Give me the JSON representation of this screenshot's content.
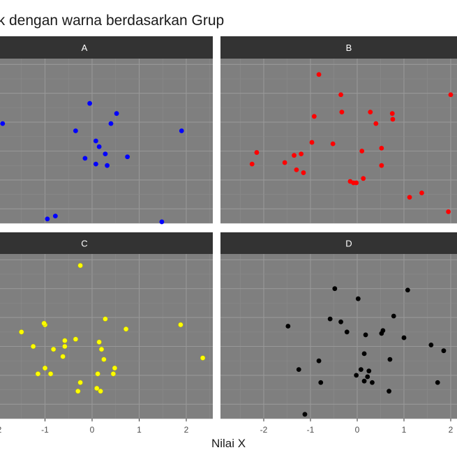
{
  "chart_data": {
    "type": "scatter",
    "title": "ik dengan warna berdasarkan Grup",
    "xlabel": "Nilai X",
    "ylabel": "",
    "x_tick_labels": [
      "-2",
      "-1",
      "0",
      "1",
      "2"
    ],
    "xlim": [
      -2.0,
      2.0
    ],
    "ylim": [
      -2.5,
      3.2
    ],
    "grid": true,
    "facets": [
      {
        "name": "A",
        "color": "#0000ff",
        "points": [
          {
            "x": -1.9,
            "y": 0.95
          },
          {
            "x": -0.05,
            "y": 1.65
          },
          {
            "x": 0.52,
            "y": 1.3
          },
          {
            "x": 0.4,
            "y": 0.95
          },
          {
            "x": -0.35,
            "y": 0.7
          },
          {
            "x": 1.9,
            "y": 0.7
          },
          {
            "x": 0.08,
            "y": 0.35
          },
          {
            "x": 0.15,
            "y": 0.15
          },
          {
            "x": 0.28,
            "y": -0.1
          },
          {
            "x": -0.15,
            "y": -0.25
          },
          {
            "x": 0.75,
            "y": -0.2
          },
          {
            "x": 0.08,
            "y": -0.45
          },
          {
            "x": 0.32,
            "y": -0.5
          },
          {
            "x": -0.78,
            "y": -2.25
          },
          {
            "x": -0.95,
            "y": -2.35
          },
          {
            "x": 1.48,
            "y": -2.45
          }
        ]
      },
      {
        "name": "B",
        "color": "#ff0000",
        "points": [
          {
            "x": -0.82,
            "y": 2.65
          },
          {
            "x": -0.35,
            "y": 1.95
          },
          {
            "x": 2.0,
            "y": 1.95
          },
          {
            "x": -0.33,
            "y": 1.35
          },
          {
            "x": 0.28,
            "y": 1.35
          },
          {
            "x": 0.75,
            "y": 1.3
          },
          {
            "x": -0.92,
            "y": 1.2
          },
          {
            "x": 0.76,
            "y": 1.1
          },
          {
            "x": 0.4,
            "y": 0.95
          },
          {
            "x": -0.97,
            "y": 0.3
          },
          {
            "x": -0.52,
            "y": 0.25
          },
          {
            "x": 0.52,
            "y": 0.1
          },
          {
            "x": 0.1,
            "y": 0.0
          },
          {
            "x": -2.15,
            "y": -0.05
          },
          {
            "x": -1.35,
            "y": -0.15
          },
          {
            "x": -1.2,
            "y": -0.1
          },
          {
            "x": -1.55,
            "y": -0.4
          },
          {
            "x": -2.25,
            "y": -0.45
          },
          {
            "x": 0.52,
            "y": -0.5
          },
          {
            "x": -1.3,
            "y": -0.65
          },
          {
            "x": -1.15,
            "y": -0.75
          },
          {
            "x": 0.13,
            "y": -0.95
          },
          {
            "x": -0.15,
            "y": -1.05
          },
          {
            "x": -0.08,
            "y": -1.1
          },
          {
            "x": -0.02,
            "y": -1.1
          },
          {
            "x": 1.38,
            "y": -1.45
          },
          {
            "x": 1.12,
            "y": -1.6
          },
          {
            "x": 1.95,
            "y": -2.1
          }
        ]
      },
      {
        "name": "C",
        "color": "#ffff00",
        "points": [
          {
            "x": -0.25,
            "y": 2.8
          },
          {
            "x": 0.28,
            "y": 0.95
          },
          {
            "x": -1.0,
            "y": 0.75
          },
          {
            "x": -1.02,
            "y": 0.8
          },
          {
            "x": 1.88,
            "y": 0.75
          },
          {
            "x": 0.72,
            "y": 0.6
          },
          {
            "x": -1.5,
            "y": 0.5
          },
          {
            "x": -0.35,
            "y": 0.25
          },
          {
            "x": -0.58,
            "y": 0.2
          },
          {
            "x": 0.15,
            "y": 0.15
          },
          {
            "x": -1.25,
            "y": 0.0
          },
          {
            "x": -0.58,
            "y": 0.0
          },
          {
            "x": -0.82,
            "y": -0.1
          },
          {
            "x": 0.2,
            "y": -0.1
          },
          {
            "x": -0.62,
            "y": -0.35
          },
          {
            "x": 2.35,
            "y": -0.4
          },
          {
            "x": 0.25,
            "y": -0.45
          },
          {
            "x": -1.0,
            "y": -0.75
          },
          {
            "x": 0.48,
            "y": -0.75
          },
          {
            "x": -1.15,
            "y": -0.95
          },
          {
            "x": -0.88,
            "y": -0.95
          },
          {
            "x": 0.12,
            "y": -0.95
          },
          {
            "x": 0.45,
            "y": -0.95
          },
          {
            "x": -0.25,
            "y": -1.25
          },
          {
            "x": 0.1,
            "y": -1.45
          },
          {
            "x": -0.3,
            "y": -1.55
          },
          {
            "x": 0.18,
            "y": -1.55
          }
        ]
      },
      {
        "name": "D",
        "color": "#000000",
        "points": [
          {
            "x": -0.48,
            "y": 2.0
          },
          {
            "x": 1.08,
            "y": 1.95
          },
          {
            "x": 0.02,
            "y": 1.65
          },
          {
            "x": 0.78,
            "y": 1.05
          },
          {
            "x": -0.58,
            "y": 0.95
          },
          {
            "x": -0.35,
            "y": 0.85
          },
          {
            "x": -1.48,
            "y": 0.7
          },
          {
            "x": -0.22,
            "y": 0.5
          },
          {
            "x": 0.55,
            "y": 0.55
          },
          {
            "x": 0.52,
            "y": 0.45
          },
          {
            "x": 0.18,
            "y": 0.4
          },
          {
            "x": 1.0,
            "y": 0.3
          },
          {
            "x": 1.58,
            "y": 0.05
          },
          {
            "x": 1.85,
            "y": -0.15
          },
          {
            "x": 0.15,
            "y": -0.25
          },
          {
            "x": -0.82,
            "y": -0.5
          },
          {
            "x": 0.7,
            "y": -0.45
          },
          {
            "x": -1.25,
            "y": -0.8
          },
          {
            "x": 0.08,
            "y": -0.8
          },
          {
            "x": 0.25,
            "y": -0.85
          },
          {
            "x": -0.02,
            "y": -1.0
          },
          {
            "x": 0.22,
            "y": -1.05
          },
          {
            "x": 0.15,
            "y": -1.2
          },
          {
            "x": 0.32,
            "y": -1.25
          },
          {
            "x": -0.78,
            "y": -1.25
          },
          {
            "x": 1.72,
            "y": -1.25
          },
          {
            "x": 0.68,
            "y": -1.55
          },
          {
            "x": -1.12,
            "y": -2.35
          }
        ]
      }
    ]
  }
}
